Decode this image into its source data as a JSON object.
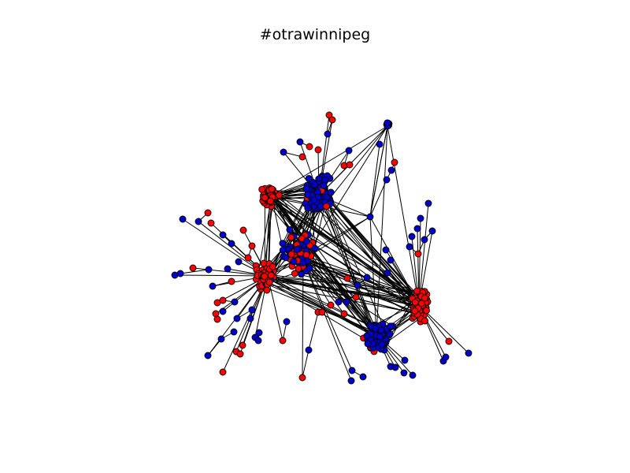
{
  "figure": {
    "title": "#otrawinnipeg"
  },
  "graph": {
    "node_colors": {
      "red": "#ff0000",
      "blue": "#0000cc"
    },
    "edge_color": "#000000",
    "node_outline": "#000000"
  }
}
